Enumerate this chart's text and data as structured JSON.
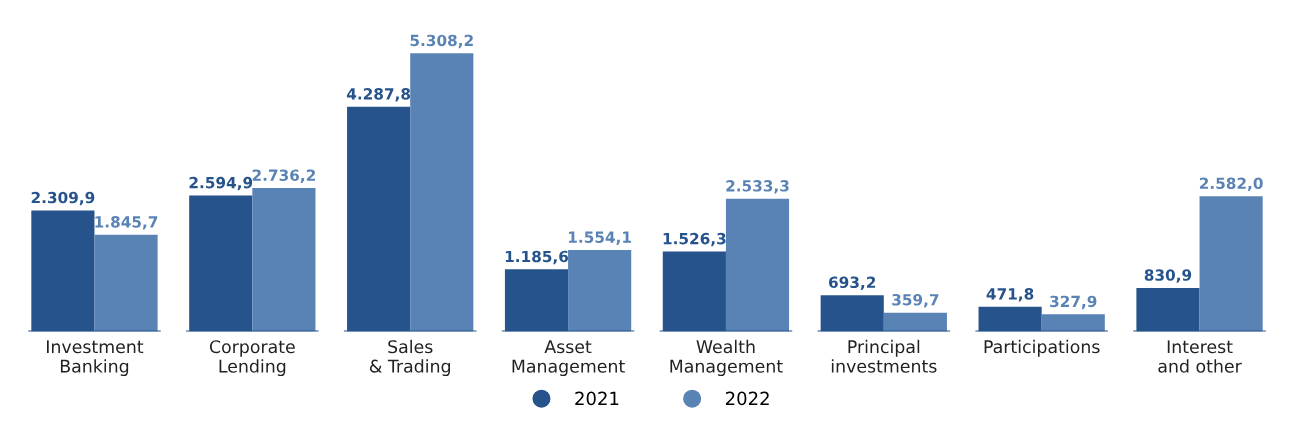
{
  "chart_data": {
    "type": "bar",
    "categories": [
      "Investment\nBanking",
      "Corporate\nLending",
      "Sales\n& Trading",
      "Asset\nManagement",
      "Wealth\nManagement",
      "Principal\ninvestments",
      "Participations",
      "Interest\nand other"
    ],
    "series": [
      {
        "name": "2021",
        "color": "#26538c",
        "values": [
          2309.9,
          2594.9,
          4287.8,
          1185.6,
          1526.3,
          693.2,
          471.8,
          830.9
        ],
        "value_labels": [
          "2.309,9",
          "2.594,9",
          "4.287,8",
          "1.185,6",
          "1.526,3",
          "693,2",
          "471,8",
          "830,9"
        ]
      },
      {
        "name": "2022",
        "color": "#5a83b5",
        "values": [
          1845.7,
          2736.2,
          5308.2,
          1554.1,
          2533.3,
          359.7,
          327.9,
          2582.0
        ],
        "value_labels": [
          "1.845,7",
          "2.736,2",
          "5.308,2",
          "1.554,1",
          "2.533,3",
          "359,7",
          "327,9",
          "2.582,0"
        ]
      }
    ],
    "legend": "bottom",
    "grid": false
  }
}
